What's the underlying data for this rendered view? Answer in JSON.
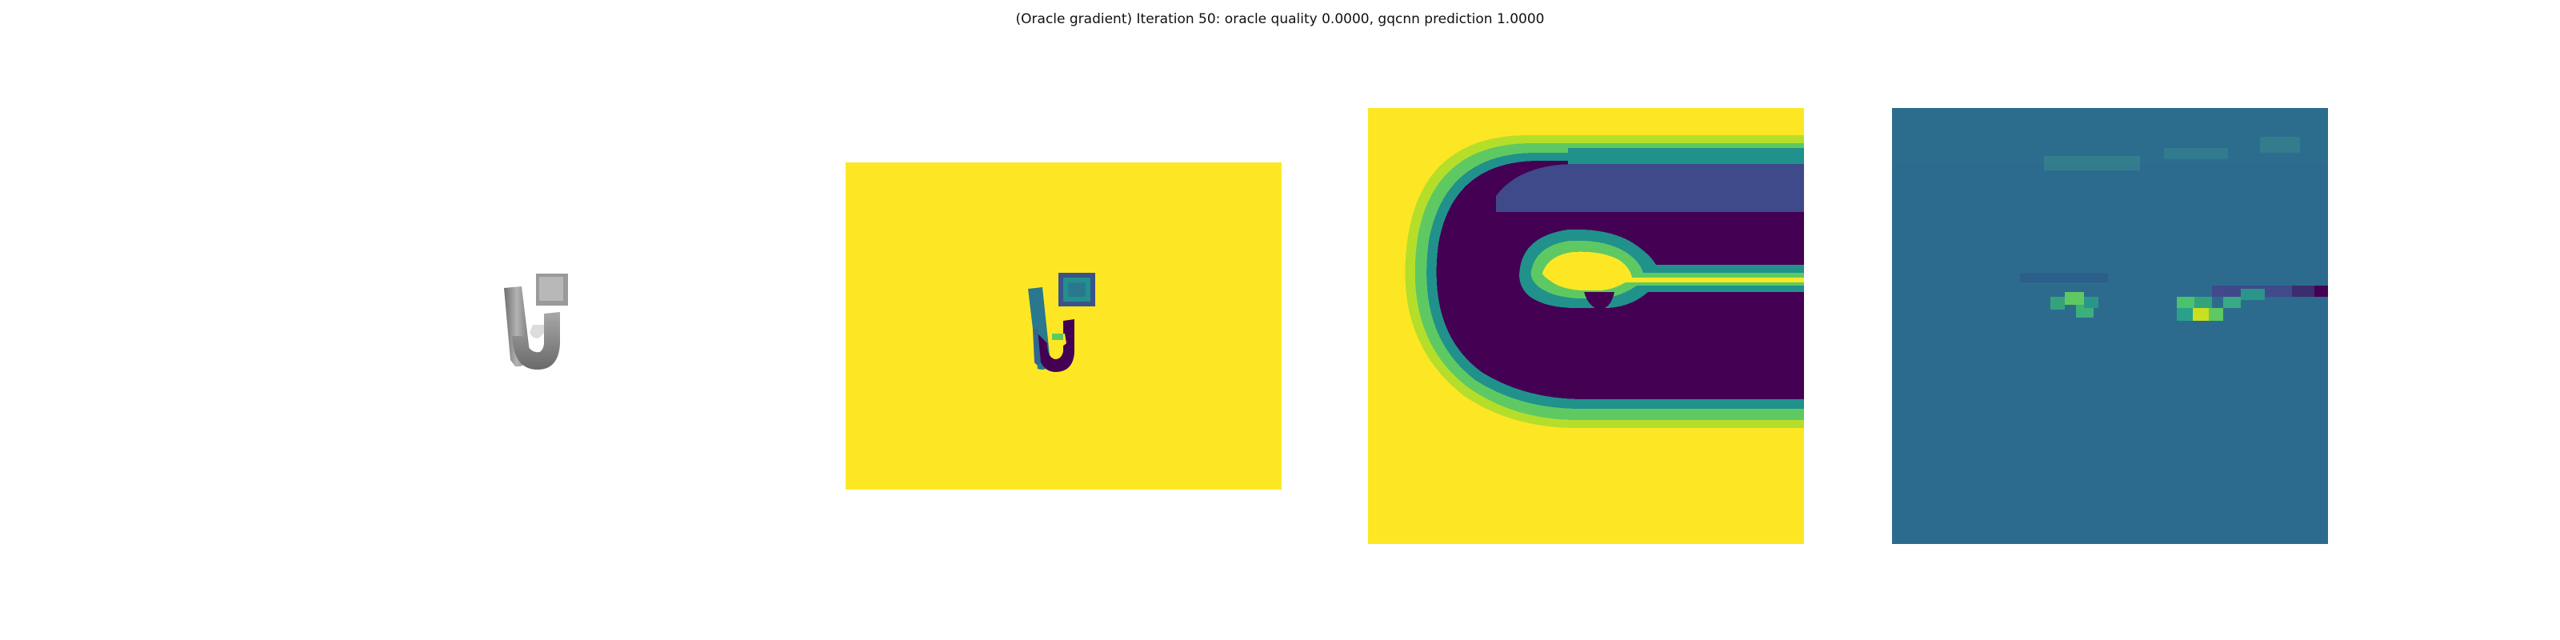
{
  "figure": {
    "title": "(Oracle gradient) Iteration 50: oracle quality 0.0000, gqcnn prediction 1.0000"
  },
  "colors": {
    "background": "#ffffff",
    "viridis_yellow": "#fde725",
    "viridis_green": "#5ec962",
    "viridis_teal": "#21918c",
    "viridis_blue": "#3b528b",
    "viridis_purple": "#440154",
    "heatmap_base": "#2c6b8e",
    "object_gray": "#8a8a8a"
  },
  "panels": [
    {
      "content": "rendered object (grayscale)"
    },
    {
      "content": "depth image (viridis)"
    },
    {
      "content": "depth crop (viridis)"
    },
    {
      "content": "oracle gradient (viridis)"
    }
  ]
}
